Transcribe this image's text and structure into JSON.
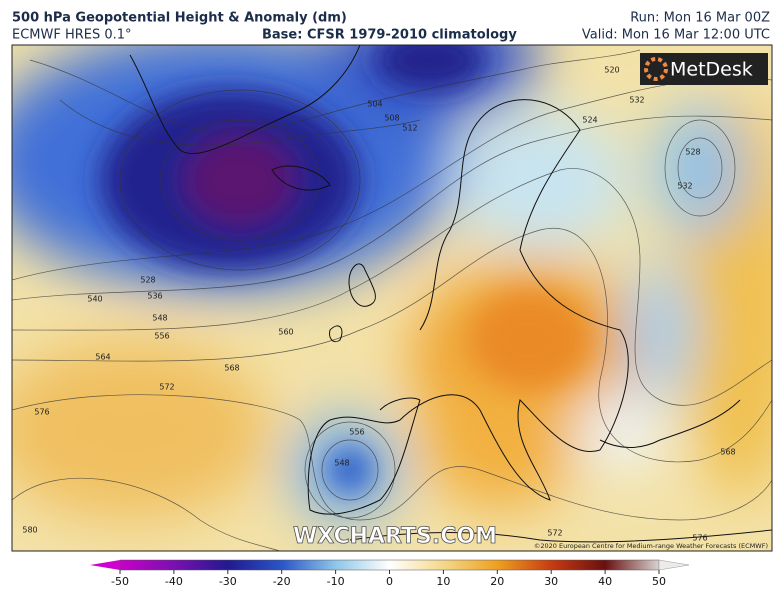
{
  "header": {
    "title": "500 hPa Geopotential Height & Anomaly (dm)",
    "model": "ECMWF HRES 0.1°",
    "base": "Base: CFSR 1979-2010 climatology",
    "run": "Run: Mon 16 Mar 00Z",
    "valid": "Valid: Mon 16 Mar 12:00 UTC"
  },
  "map": {
    "logo": "MetDesk",
    "watermark": "WXCHARTS.COM",
    "copyright": "©2020 European Centre for Medium-range Weather Forecasts (ECMWF)",
    "contour_labels": [
      528,
      532,
      532,
      524,
      520,
      512,
      508,
      504,
      540,
      536,
      528,
      548,
      556,
      560,
      564,
      568,
      572,
      576,
      556,
      548,
      572,
      576,
      568,
      580
    ]
  },
  "colorbar": {
    "lim": [
      -50,
      50
    ],
    "ticks": [
      -50,
      -40,
      -30,
      -20,
      -10,
      0,
      10,
      20,
      30,
      40,
      50
    ]
  }
}
